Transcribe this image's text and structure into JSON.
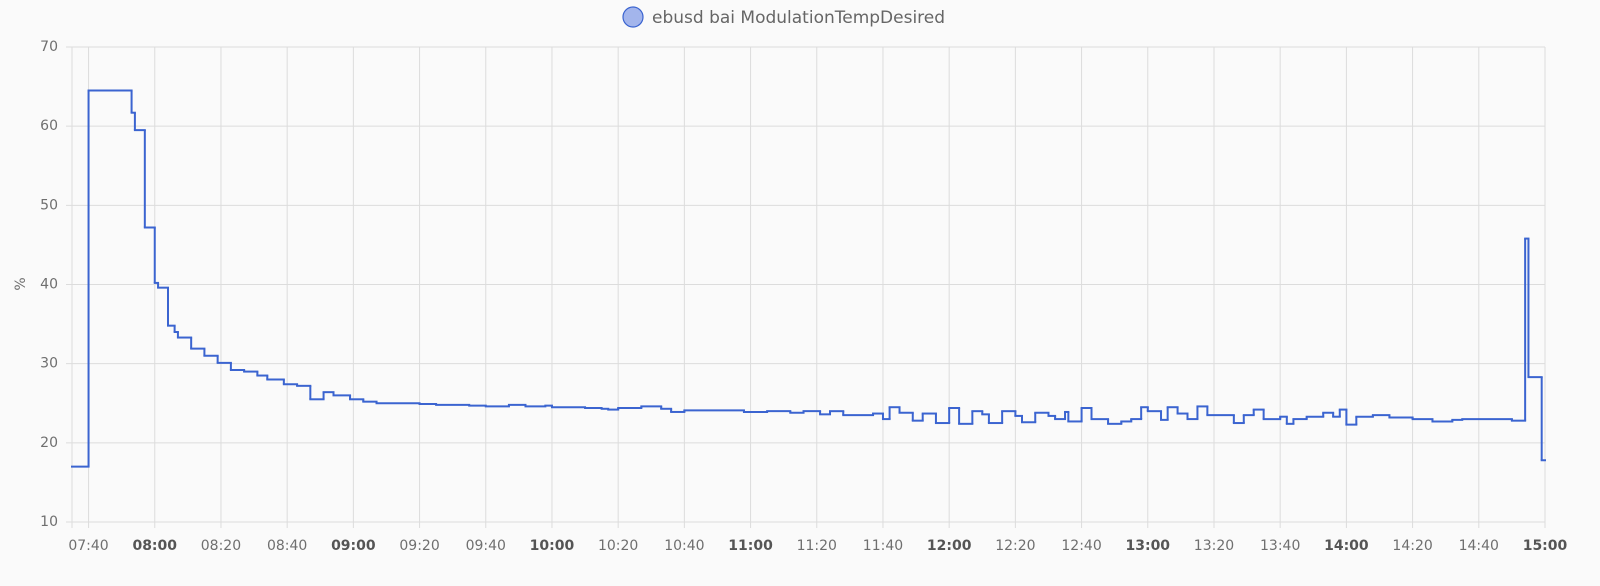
{
  "chart_data": {
    "type": "step-line",
    "y_label": "%",
    "ylim": [
      10,
      70
    ],
    "yticks": [
      10,
      20,
      30,
      40,
      50,
      60,
      70
    ],
    "xlim": [
      "07:35",
      "15:00"
    ],
    "xticks": [
      "07:40",
      "08:00",
      "08:20",
      "08:40",
      "09:00",
      "09:20",
      "09:40",
      "10:00",
      "10:20",
      "10:40",
      "11:00",
      "11:20",
      "11:40",
      "12:00",
      "12:20",
      "12:40",
      "13:00",
      "13:20",
      "13:40",
      "14:00",
      "14:20",
      "14:40",
      "15:00"
    ],
    "grid": true,
    "legend": "top",
    "x": [
      "07:35",
      "07:40",
      "07:53",
      "07:54",
      "07:57",
      "08:00",
      "08:01",
      "08:04",
      "08:06",
      "08:07",
      "08:11",
      "08:15",
      "08:19",
      "08:23",
      "08:27",
      "08:31",
      "08:34",
      "08:39",
      "08:43",
      "08:47",
      "08:51",
      "08:54",
      "08:59",
      "09:03",
      "09:07",
      "09:20",
      "09:25",
      "09:35",
      "09:40",
      "09:47",
      "09:52",
      "09:58",
      "10:00",
      "10:10",
      "10:15",
      "10:17",
      "10:20",
      "10:27",
      "10:33",
      "10:36",
      "10:40",
      "10:58",
      "11:05",
      "11:12",
      "11:16",
      "11:21",
      "11:24",
      "11:28",
      "11:37",
      "11:40",
      "11:42",
      "11:45",
      "11:49",
      "11:52",
      "11:56",
      "12:00",
      "12:03",
      "12:07",
      "12:10",
      "12:12",
      "12:16",
      "12:20",
      "12:22",
      "12:26",
      "12:30",
      "12:32",
      "12:35",
      "12:36",
      "12:40",
      "12:43",
      "12:48",
      "12:52",
      "12:55",
      "12:58",
      "13:00",
      "13:04",
      "13:06",
      "13:09",
      "13:12",
      "13:15",
      "13:18",
      "13:26",
      "13:29",
      "13:32",
      "13:35",
      "13:40",
      "13:42",
      "13:44",
      "13:48",
      "13:53",
      "13:56",
      "13:58",
      "14:00",
      "14:03",
      "14:08",
      "14:13",
      "14:20",
      "14:26",
      "14:32",
      "14:35",
      "14:50",
      "14:54",
      "14:55",
      "14:59"
    ],
    "series": [
      {
        "name": "ebusd bai ModulationTempDesired",
        "color": "#3b64d0",
        "values": [
          17,
          64.5,
          61.7,
          59.5,
          47.2,
          40.2,
          39.6,
          34.8,
          34.0,
          33.3,
          31.9,
          31.0,
          30.1,
          29.2,
          29.0,
          28.5,
          28.0,
          27.4,
          27.2,
          25.5,
          26.4,
          26.0,
          25.5,
          25.2,
          25.0,
          24.9,
          24.8,
          24.7,
          24.6,
          24.8,
          24.6,
          24.7,
          24.5,
          24.4,
          24.3,
          24.2,
          24.4,
          24.6,
          24.3,
          23.9,
          24.1,
          23.9,
          24.0,
          23.8,
          24.0,
          23.6,
          24.0,
          23.5,
          23.7,
          23.0,
          24.5,
          23.8,
          22.8,
          23.7,
          22.5,
          24.4,
          22.4,
          24.0,
          23.6,
          22.5,
          24.0,
          23.4,
          22.6,
          23.8,
          23.4,
          23.0,
          23.9,
          22.7,
          24.4,
          23.0,
          22.4,
          22.7,
          23.0,
          24.5,
          24.0,
          22.9,
          24.5,
          23.7,
          23.0,
          24.6,
          23.5,
          22.5,
          23.5,
          24.2,
          23.0,
          23.3,
          22.4,
          23.0,
          23.3,
          23.8,
          23.3,
          24.2,
          22.3,
          23.3,
          23.5,
          23.2,
          23.0,
          22.7,
          22.9,
          23.0,
          22.8,
          45.8,
          28.3,
          17.8
        ]
      }
    ]
  }
}
